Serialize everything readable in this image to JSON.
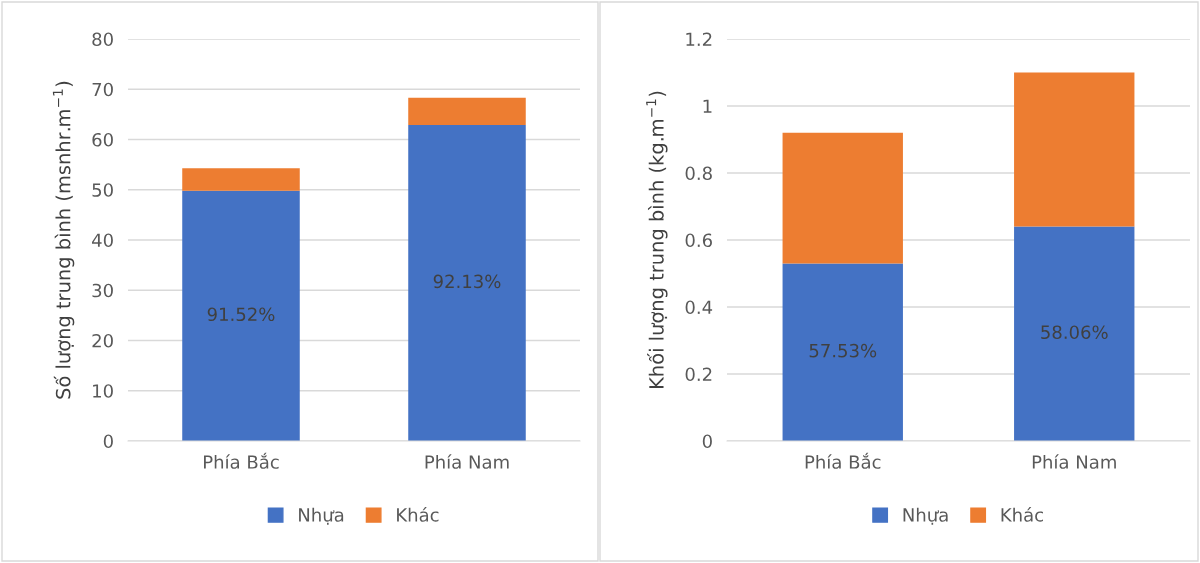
{
  "chart_data": [
    {
      "type": "bar",
      "stacked": true,
      "categories": [
        "Phía Bắc",
        "Phía Nam"
      ],
      "ylabel": "Số lượng trung bình (msnhr.m$^{−1}$)",
      "ylim": [
        0,
        80
      ],
      "yticks": [
        0,
        10,
        20,
        30,
        40,
        50,
        60,
        70,
        80
      ],
      "grid": "y",
      "legend": "bottom",
      "annotations": [
        "91.52%",
        "92.13%"
      ],
      "series": [
        {
          "name": "Nhựa",
          "color": "#4472c4",
          "values": [
            49.8,
            62.9
          ]
        },
        {
          "name": "Khác",
          "color": "#ed7d31",
          "values": [
            4.5,
            5.4
          ]
        }
      ]
    },
    {
      "type": "bar",
      "stacked": true,
      "categories": [
        "Phía Bắc",
        "Phía Nam"
      ],
      "ylabel": "Khối lượng trung bình (kg.m$^{−1}$)",
      "ylim": [
        0,
        1.2
      ],
      "yticks": [
        0,
        0.2,
        0.4,
        0.6,
        0.8,
        1,
        1.2
      ],
      "grid": "y",
      "legend": "bottom",
      "annotations": [
        "57.53%",
        "58.06%"
      ],
      "series": [
        {
          "name": "Nhựa",
          "color": "#4472c4",
          "values": [
            0.53,
            0.64
          ]
        },
        {
          "name": "Khác",
          "color": "#ed7d31",
          "values": [
            0.39,
            0.46
          ]
        }
      ]
    }
  ]
}
